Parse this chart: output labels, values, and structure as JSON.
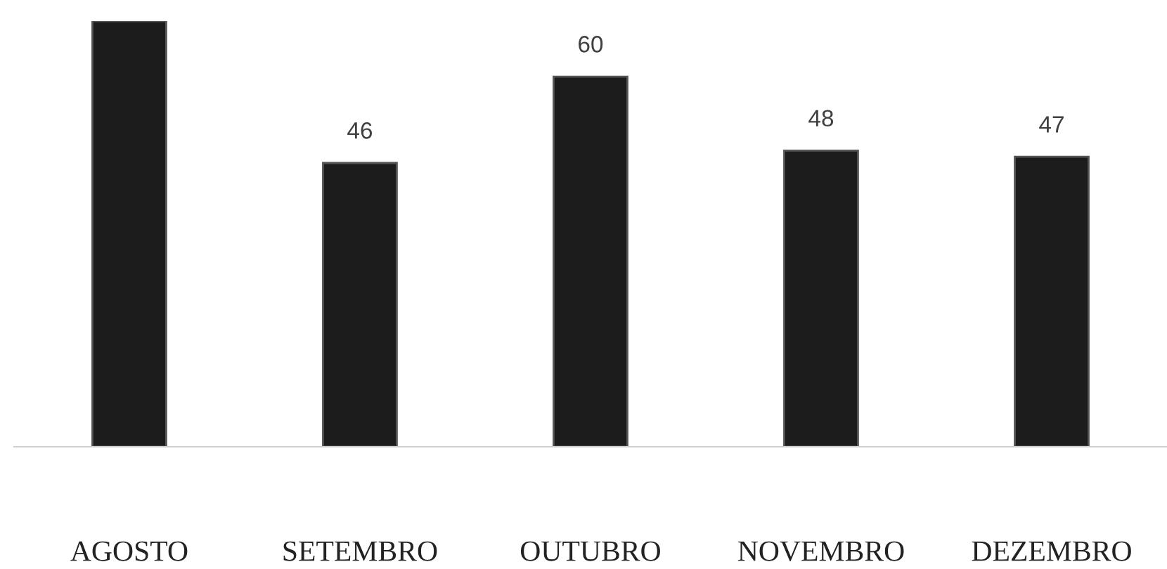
{
  "chart_data": {
    "type": "bar",
    "categories": [
      "AGOSTO",
      "SETEMBRO",
      "OUTUBRO",
      "NOVEMBRO",
      "DEZEMBRO"
    ],
    "values": [
      69,
      46,
      60,
      48,
      47
    ],
    "value_labels": [
      null,
      "46",
      "60",
      "48",
      "47"
    ],
    "color": "#1c1c1c",
    "grid": false,
    "legend": false
  }
}
